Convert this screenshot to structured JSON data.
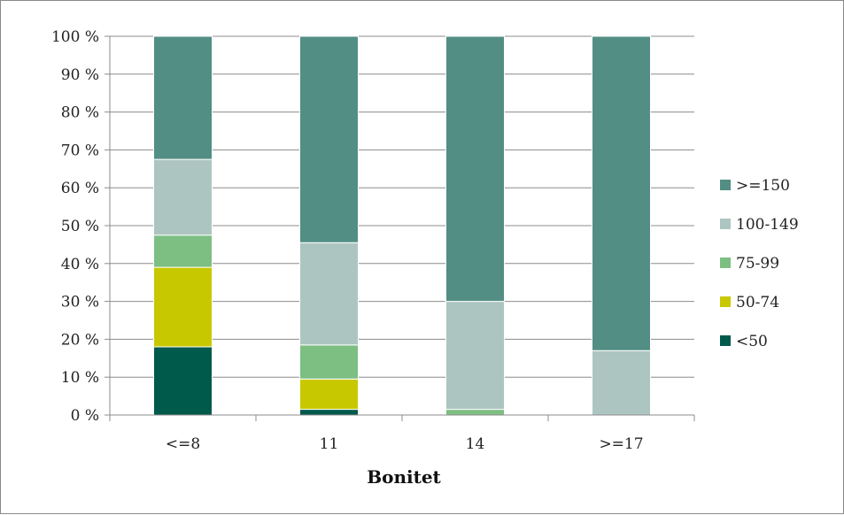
{
  "chart_data": {
    "type": "bar",
    "stacked": true,
    "normalized": true,
    "title": "",
    "xlabel": "Bonitet",
    "ylabel": "",
    "categories": [
      "<=8",
      "11",
      "14",
      ">=17"
    ],
    "y_ticks": [
      "0 %",
      "10 %",
      "20 %",
      "30 %",
      "40 %",
      "50 %",
      "60 %",
      "70 %",
      "80 %",
      "90 %",
      "100 %"
    ],
    "ylim": [
      0,
      100
    ],
    "grid": true,
    "legend_position": "right",
    "series": [
      {
        "name": "<50",
        "color": "#005A4B",
        "values": [
          18,
          1.5,
          0,
          0
        ]
      },
      {
        "name": "50-74",
        "color": "#C8C800",
        "values": [
          21,
          8,
          0,
          0
        ]
      },
      {
        "name": "75-99",
        "color": "#7DBF82",
        "values": [
          8.5,
          9,
          1.5,
          0
        ]
      },
      {
        "name": "100-149",
        "color": "#ADC5C0",
        "values": [
          20,
          27,
          28.5,
          17
        ]
      },
      {
        "name": ">=150",
        "color": "#528E84",
        "values": [
          32.5,
          54.5,
          70,
          83
        ]
      }
    ]
  }
}
